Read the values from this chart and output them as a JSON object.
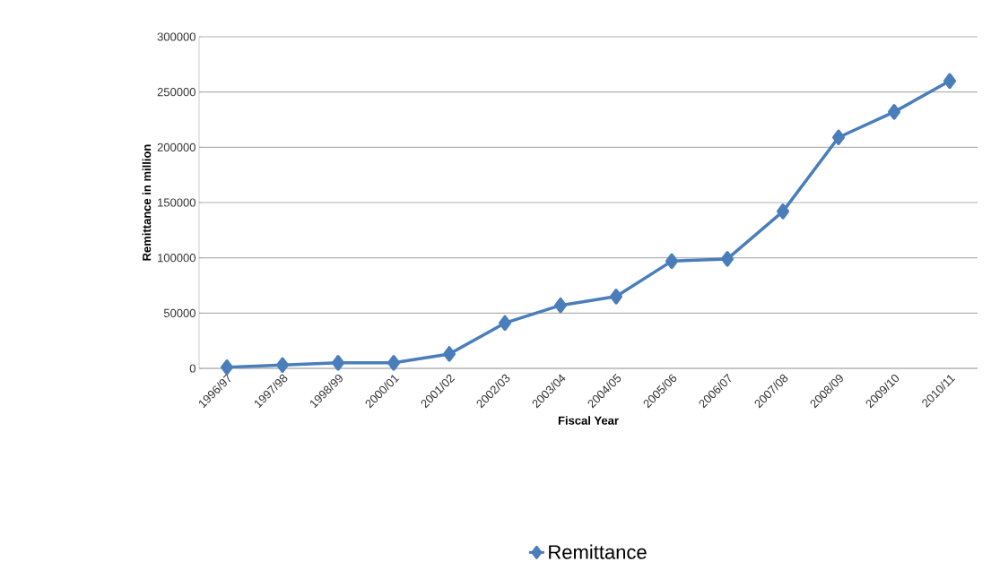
{
  "chart_data": {
    "type": "line",
    "xlabel": "Fiscal Year",
    "ylabel": "Remittance in million",
    "categories": [
      "1996/97",
      "1997/98",
      "1998/99",
      "2000/01",
      "2001/02",
      "2002/03",
      "2003/04",
      "2004/05",
      "2005/06",
      "2006/07",
      "2007/08",
      "2008/09",
      "2009/10",
      "2010/11"
    ],
    "series": [
      {
        "name": "Remittance",
        "color": "#4a7ebb",
        "values": [
          1000,
          3000,
          5000,
          5000,
          13000,
          41000,
          57000,
          65000,
          97000,
          99000,
          142000,
          209000,
          232000,
          260000
        ]
      }
    ],
    "ylim": [
      0,
      300000
    ],
    "yticks": [
      0,
      50000,
      100000,
      150000,
      200000,
      250000,
      300000
    ],
    "grid": "y",
    "legend": "bottom",
    "marker": "diamond",
    "line_style": "solid"
  }
}
